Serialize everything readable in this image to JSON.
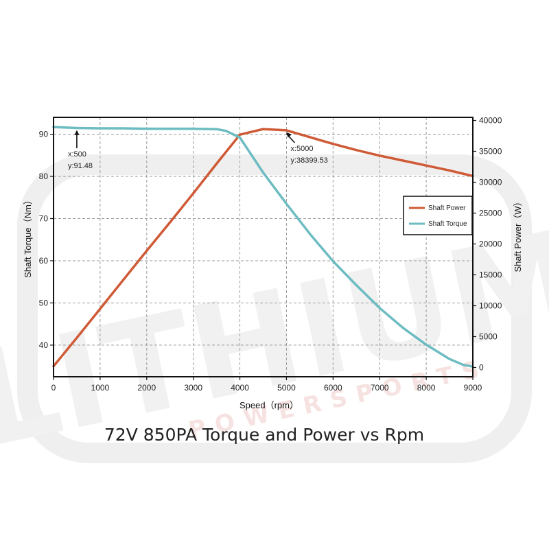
{
  "caption": "72V 850PA Torque and Power vs Rpm",
  "watermark": {
    "main": "LITHIUM",
    "sub": "POWERSPORTS"
  },
  "chart_data": {
    "type": "line",
    "xlabel": "Speed（rpm）",
    "ylabel_left": "Shaft Torque（Nm）",
    "ylabel_right": "Shaft Power（W）",
    "xlim": [
      0,
      9000
    ],
    "ylim_left": [
      32.5,
      94
    ],
    "ylim_right": [
      -1500,
      40500
    ],
    "x_ticks": [
      0,
      1000,
      2000,
      3000,
      4000,
      5000,
      6000,
      7000,
      8000,
      9000
    ],
    "y_ticks_left": [
      40,
      50,
      60,
      70,
      80,
      90
    ],
    "y_ticks_right": [
      0,
      5000,
      10000,
      15000,
      20000,
      25000,
      30000,
      35000,
      40000
    ],
    "grid": true,
    "legend_position": "right",
    "series": [
      {
        "name": "Shaft Power",
        "axis": "right",
        "color": "#cf5a36",
        "x": [
          0,
          500,
          1000,
          1500,
          2000,
          2500,
          3000,
          3500,
          4000,
          4500,
          5000,
          5500,
          6000,
          6500,
          7000,
          7500,
          8000,
          8500,
          9000
        ],
        "y": [
          200,
          4800,
          9500,
          14200,
          18900,
          23500,
          28200,
          33000,
          37700,
          38600,
          38399,
          37300,
          36200,
          35200,
          34300,
          33500,
          32700,
          31900,
          31000
        ]
      },
      {
        "name": "Shaft Torque",
        "axis": "left",
        "color": "#6cbcc1",
        "x": [
          0,
          500,
          1000,
          1500,
          2000,
          2500,
          3000,
          3500,
          3700,
          4000,
          4500,
          5000,
          5500,
          6000,
          6500,
          7000,
          7500,
          8000,
          8500,
          8800,
          9000
        ],
        "y": [
          91.7,
          91.48,
          91.4,
          91.4,
          91.3,
          91.3,
          91.3,
          91.2,
          90.8,
          89.2,
          80.9,
          73.5,
          66.4,
          59.9,
          54.2,
          48.8,
          44.1,
          40.1,
          36.7,
          35.3,
          34.9
        ]
      }
    ],
    "annotations": [
      {
        "lines": [
          "x:500",
          "y:91.48"
        ],
        "x": 500,
        "y": 91.48,
        "axis": "left"
      },
      {
        "lines": [
          "x:5000",
          "y:38399.53"
        ],
        "x": 5000,
        "y": 38399.53,
        "axis": "right"
      }
    ]
  }
}
